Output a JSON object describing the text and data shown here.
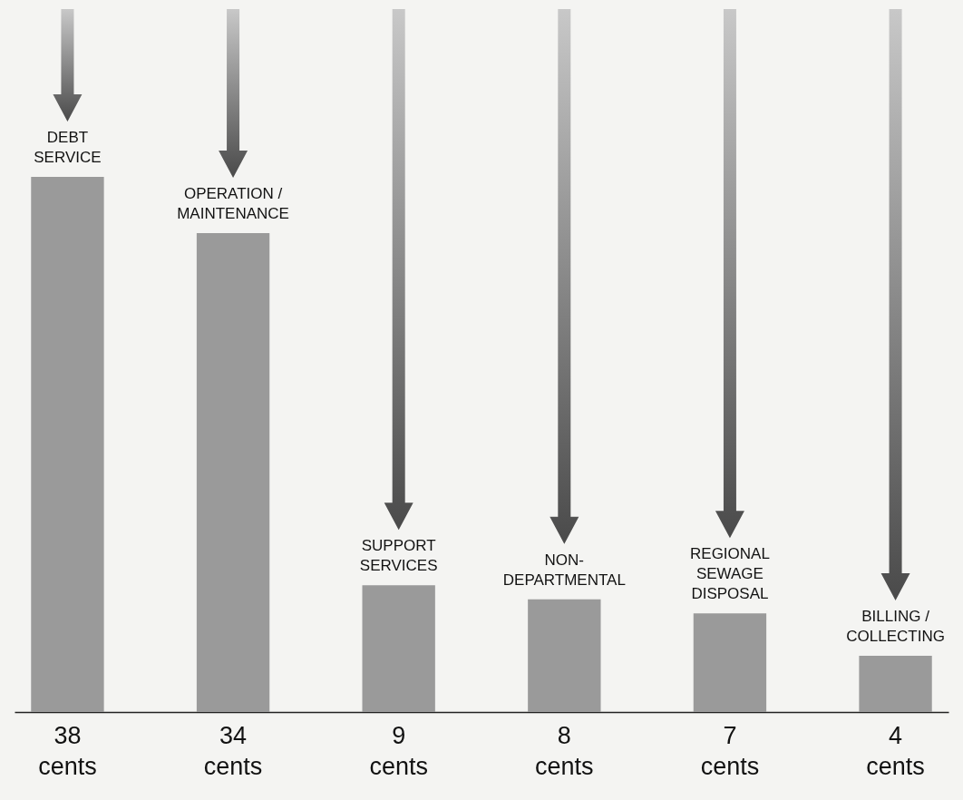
{
  "chart_data": {
    "type": "bar",
    "categories": [
      "DEBT\nSERVICE",
      "OPERATION /\nMAINTENANCE",
      "SUPPORT\nSERVICES",
      "NON-\nDEPARTMENTAL",
      "REGIONAL\nSEWAGE\nDISPOSAL",
      "BILLING /\nCOLLECTING"
    ],
    "values": [
      38,
      34,
      9,
      8,
      7,
      4
    ],
    "value_labels": [
      "38 cents",
      "34 cents",
      "9 cents",
      "8 cents",
      "7 cents",
      "4 cents"
    ],
    "color": "#9a9a9a"
  }
}
